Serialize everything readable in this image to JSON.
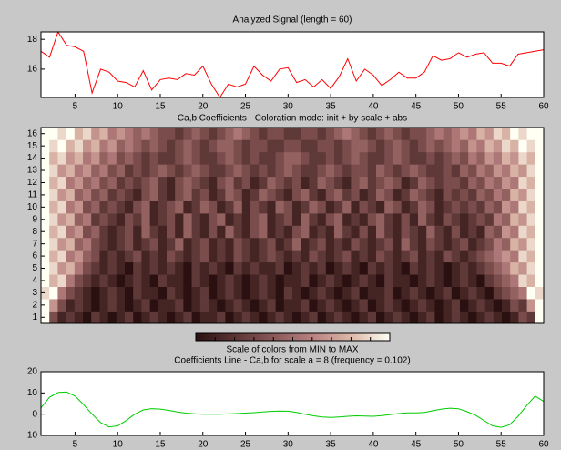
{
  "chart_data": [
    {
      "type": "line",
      "title": "Analyzed Signal  (length = 60)",
      "color": "#ff0000",
      "x": [
        1,
        2,
        3,
        4,
        5,
        6,
        7,
        8,
        9,
        10,
        11,
        12,
        13,
        14,
        15,
        16,
        17,
        18,
        19,
        20,
        21,
        22,
        23,
        24,
        25,
        26,
        27,
        28,
        29,
        30,
        31,
        32,
        33,
        34,
        35,
        36,
        37,
        38,
        39,
        40,
        41,
        42,
        43,
        44,
        45,
        46,
        47,
        48,
        49,
        50,
        51,
        52,
        53,
        54,
        55,
        56,
        57,
        58,
        59,
        60
      ],
      "values": [
        17.2,
        16.8,
        18.5,
        17.6,
        17.5,
        17.2,
        14.4,
        16.0,
        15.8,
        15.2,
        15.1,
        14.8,
        15.9,
        14.6,
        15.3,
        15.4,
        15.3,
        15.7,
        15.6,
        16.2,
        15.0,
        14.1,
        15.0,
        14.8,
        15.0,
        16.2,
        15.6,
        15.2,
        16.0,
        16.1,
        15.1,
        15.3,
        14.8,
        15.3,
        14.7,
        15.5,
        16.7,
        15.2,
        16.0,
        15.6,
        14.9,
        15.3,
        15.8,
        15.4,
        15.4,
        15.8,
        16.9,
        16.6,
        16.7,
        17.1,
        16.8,
        17.0,
        17.1,
        16.4,
        16.4,
        16.2,
        17.0,
        17.1,
        17.2,
        17.3
      ],
      "xlim": [
        1,
        60
      ],
      "xticks": [
        5,
        10,
        15,
        20,
        25,
        30,
        35,
        40,
        45,
        50,
        55,
        60
      ],
      "ylim": [
        14.1,
        18.5
      ],
      "yticks": [
        16,
        18
      ]
    },
    {
      "type": "heatmap",
      "title": "Ca,b Coefficients - Coloration mode: init + by scale + abs",
      "colorbar_label": "Scale of colors from MIN to MAX",
      "colors": [
        "#2a1010",
        "#5a3434",
        "#8a5858",
        "#b88080",
        "#dcb8a8",
        "#fffff4"
      ],
      "y": [
        1,
        2,
        3,
        4,
        5,
        6,
        7,
        8,
        9,
        10,
        11,
        12,
        13,
        14,
        15,
        16
      ],
      "values": [
        [
          9,
          3,
          1,
          2,
          1,
          0,
          2,
          1,
          0,
          1,
          2,
          0,
          1,
          2,
          1,
          0,
          1,
          2,
          0,
          1,
          1,
          2,
          0,
          1,
          2,
          1,
          0,
          1,
          2,
          1,
          0,
          1,
          2,
          0,
          1,
          2,
          1,
          0,
          1,
          2,
          0,
          1,
          2,
          1,
          0,
          1,
          2,
          0,
          1,
          2,
          1,
          0,
          1,
          2,
          1,
          0,
          1,
          3,
          2,
          9
        ],
        [
          9,
          6,
          3,
          1,
          2,
          1,
          0,
          1,
          2,
          1,
          0,
          1,
          2,
          0,
          1,
          1,
          2,
          0,
          1,
          2,
          1,
          0,
          1,
          2,
          1,
          0,
          1,
          2,
          0,
          1,
          1,
          2,
          0,
          1,
          2,
          1,
          0,
          1,
          2,
          0,
          1,
          2,
          1,
          0,
          1,
          2,
          1,
          0,
          1,
          2,
          0,
          1,
          2,
          1,
          0,
          1,
          3,
          2,
          6,
          9
        ],
        [
          8,
          9,
          5,
          3,
          2,
          1,
          0,
          1,
          2,
          1,
          0,
          2,
          1,
          1,
          0,
          2,
          1,
          0,
          1,
          2,
          0,
          1,
          2,
          1,
          0,
          1,
          2,
          1,
          0,
          2,
          1,
          0,
          1,
          2,
          1,
          0,
          1,
          2,
          0,
          1,
          1,
          2,
          0,
          1,
          2,
          1,
          0,
          1,
          2,
          0,
          1,
          2,
          1,
          0,
          2,
          3,
          4,
          5,
          9,
          8
        ],
        [
          9,
          7,
          8,
          5,
          3,
          2,
          1,
          2,
          1,
          0,
          1,
          2,
          1,
          0,
          2,
          1,
          1,
          0,
          2,
          1,
          0,
          1,
          2,
          1,
          0,
          1,
          2,
          1,
          0,
          1,
          1,
          2,
          0,
          1,
          2,
          1,
          0,
          1,
          2,
          1,
          0,
          2,
          1,
          1,
          0,
          1,
          2,
          1,
          0,
          1,
          2,
          1,
          0,
          2,
          3,
          4,
          5,
          8,
          7,
          9
        ],
        [
          9,
          8,
          6,
          7,
          5,
          3,
          2,
          1,
          2,
          1,
          0,
          2,
          1,
          2,
          1,
          2,
          1,
          0,
          2,
          1,
          2,
          1,
          0,
          2,
          1,
          2,
          1,
          1,
          2,
          0,
          1,
          2,
          1,
          2,
          0,
          1,
          2,
          1,
          0,
          2,
          1,
          2,
          1,
          0,
          2,
          1,
          2,
          1,
          0,
          1,
          2,
          1,
          2,
          3,
          4,
          5,
          7,
          6,
          8,
          9
        ],
        [
          9,
          7,
          8,
          5,
          6,
          4,
          3,
          1,
          2,
          1,
          2,
          3,
          1,
          2,
          1,
          3,
          2,
          1,
          2,
          3,
          1,
          2,
          1,
          3,
          2,
          1,
          2,
          3,
          2,
          1,
          2,
          1,
          3,
          2,
          1,
          2,
          3,
          1,
          2,
          1,
          3,
          2,
          1,
          2,
          3,
          1,
          2,
          1,
          3,
          2,
          1,
          2,
          3,
          4,
          5,
          6,
          5,
          8,
          7,
          9
        ],
        [
          9,
          8,
          6,
          7,
          4,
          5,
          3,
          2,
          1,
          2,
          3,
          1,
          2,
          3,
          1,
          2,
          4,
          1,
          2,
          3,
          1,
          2,
          1,
          3,
          2,
          1,
          2,
          3,
          1,
          2,
          4,
          1,
          2,
          3,
          1,
          2,
          1,
          3,
          2,
          1,
          2,
          3,
          1,
          4,
          2,
          1,
          3,
          2,
          1,
          2,
          3,
          1,
          2,
          3,
          5,
          4,
          7,
          6,
          8,
          9
        ],
        [
          9,
          7,
          8,
          5,
          6,
          3,
          4,
          2,
          1,
          2,
          3,
          1,
          4,
          2,
          1,
          3,
          1,
          4,
          2,
          1,
          3,
          1,
          4,
          2,
          1,
          3,
          4,
          1,
          2,
          1,
          3,
          4,
          1,
          2,
          1,
          4,
          2,
          1,
          3,
          1,
          4,
          2,
          1,
          3,
          2,
          1,
          4,
          2,
          1,
          3,
          1,
          2,
          1,
          4,
          3,
          6,
          5,
          8,
          7,
          9
        ],
        [
          9,
          8,
          6,
          7,
          4,
          5,
          2,
          3,
          2,
          1,
          3,
          2,
          4,
          1,
          2,
          3,
          1,
          4,
          2,
          1,
          3,
          4,
          1,
          2,
          1,
          3,
          4,
          1,
          2,
          3,
          1,
          4,
          2,
          1,
          3,
          4,
          1,
          2,
          1,
          3,
          4,
          2,
          1,
          3,
          1,
          4,
          2,
          1,
          3,
          2,
          1,
          2,
          3,
          2,
          5,
          4,
          7,
          6,
          8,
          9
        ],
        [
          9,
          7,
          8,
          5,
          6,
          3,
          4,
          2,
          3,
          2,
          1,
          3,
          4,
          1,
          2,
          3,
          4,
          1,
          2,
          4,
          3,
          1,
          2,
          4,
          1,
          3,
          2,
          1,
          4,
          3,
          1,
          2,
          4,
          3,
          1,
          2,
          4,
          1,
          3,
          2,
          1,
          4,
          3,
          1,
          2,
          4,
          3,
          1,
          2,
          3,
          2,
          3,
          2,
          4,
          3,
          6,
          5,
          8,
          7,
          9
        ],
        [
          9,
          8,
          6,
          7,
          4,
          5,
          3,
          4,
          2,
          3,
          2,
          1,
          3,
          4,
          2,
          1,
          3,
          4,
          2,
          3,
          1,
          2,
          4,
          3,
          1,
          2,
          4,
          3,
          2,
          1,
          3,
          4,
          2,
          1,
          3,
          4,
          2,
          3,
          1,
          2,
          4,
          3,
          1,
          2,
          4,
          3,
          2,
          1,
          3,
          2,
          3,
          2,
          4,
          3,
          5,
          4,
          7,
          6,
          8,
          9
        ],
        [
          9,
          7,
          8,
          5,
          6,
          4,
          5,
          3,
          4,
          2,
          3,
          2,
          3,
          4,
          2,
          1,
          3,
          4,
          3,
          2,
          1,
          3,
          4,
          2,
          3,
          1,
          2,
          4,
          3,
          2,
          3,
          1,
          2,
          4,
          3,
          2,
          1,
          3,
          4,
          2,
          3,
          4,
          3,
          1,
          2,
          4,
          3,
          2,
          3,
          3,
          2,
          4,
          3,
          5,
          4,
          6,
          5,
          8,
          7,
          9
        ],
        [
          9,
          8,
          6,
          7,
          5,
          6,
          4,
          5,
          3,
          4,
          2,
          3,
          2,
          3,
          4,
          3,
          2,
          3,
          4,
          3,
          2,
          2,
          3,
          4,
          3,
          2,
          3,
          2,
          3,
          4,
          3,
          2,
          2,
          3,
          4,
          3,
          2,
          3,
          3,
          2,
          4,
          3,
          2,
          3,
          4,
          3,
          2,
          2,
          3,
          2,
          4,
          3,
          5,
          4,
          6,
          5,
          7,
          6,
          8,
          9
        ],
        [
          9,
          7,
          8,
          6,
          7,
          5,
          6,
          4,
          5,
          3,
          4,
          3,
          2,
          3,
          2,
          2,
          3,
          4,
          3,
          2,
          2,
          3,
          4,
          3,
          2,
          3,
          2,
          2,
          3,
          4,
          4,
          3,
          2,
          2,
          3,
          2,
          3,
          4,
          3,
          2,
          2,
          3,
          4,
          3,
          2,
          2,
          3,
          2,
          3,
          4,
          3,
          5,
          4,
          6,
          5,
          7,
          6,
          8,
          7,
          9
        ],
        [
          9,
          8,
          9,
          7,
          8,
          6,
          7,
          5,
          6,
          4,
          5,
          4,
          3,
          4,
          3,
          2,
          3,
          4,
          3,
          2,
          3,
          4,
          4,
          3,
          2,
          3,
          3,
          2,
          2,
          3,
          3,
          2,
          2,
          3,
          3,
          2,
          3,
          4,
          4,
          3,
          2,
          3,
          4,
          3,
          2,
          3,
          4,
          3,
          4,
          5,
          4,
          6,
          5,
          7,
          6,
          8,
          7,
          9,
          8,
          9
        ],
        [
          9,
          9,
          8,
          9,
          7,
          8,
          6,
          7,
          5,
          6,
          5,
          4,
          5,
          4,
          3,
          3,
          2,
          3,
          4,
          3,
          2,
          3,
          4,
          5,
          4,
          3,
          2,
          3,
          3,
          2,
          2,
          3,
          3,
          2,
          3,
          4,
          5,
          4,
          3,
          2,
          3,
          4,
          3,
          2,
          3,
          3,
          4,
          5,
          4,
          5,
          6,
          5,
          7,
          6,
          8,
          7,
          9,
          8,
          9,
          9
        ]
      ]
    },
    {
      "type": "line",
      "title": "Coefficients Line - Ca,b for scale a = 8  (frequency =   0.102)",
      "color": "#00cc00",
      "x": [
        1,
        2,
        3,
        4,
        5,
        6,
        7,
        8,
        9,
        10,
        11,
        12,
        13,
        14,
        15,
        16,
        17,
        18,
        19,
        20,
        21,
        22,
        23,
        24,
        25,
        26,
        27,
        28,
        29,
        30,
        31,
        32,
        33,
        34,
        35,
        36,
        37,
        38,
        39,
        40,
        41,
        42,
        43,
        44,
        45,
        46,
        47,
        48,
        49,
        50,
        51,
        52,
        53,
        54,
        55,
        56,
        57,
        58,
        59,
        60
      ],
      "values": [
        3,
        8,
        10.2,
        10.5,
        8.5,
        4.5,
        0,
        -4,
        -6,
        -5.5,
        -3,
        0,
        2,
        2.6,
        2.4,
        1.8,
        1,
        0.5,
        0.2,
        0,
        0,
        0,
        0.1,
        0.3,
        0.5,
        0.7,
        1,
        1.3,
        1.5,
        1.4,
        0.8,
        0,
        -0.8,
        -1.3,
        -1.5,
        -1.3,
        -1,
        -0.8,
        -0.9,
        -1,
        -0.7,
        -0.2,
        0.3,
        0.6,
        0.6,
        0.8,
        1.6,
        2.4,
        2.8,
        2.5,
        1.2,
        -0.5,
        -3,
        -5.5,
        -6.2,
        -5,
        -1,
        4,
        8.5,
        6
      ],
      "xlim": [
        1,
        60
      ],
      "xticks": [
        5,
        10,
        15,
        20,
        25,
        30,
        35,
        40,
        45,
        50,
        55,
        60
      ],
      "ylim": [
        -10,
        20
      ],
      "yticks": [
        -10,
        0,
        10,
        20
      ]
    }
  ]
}
